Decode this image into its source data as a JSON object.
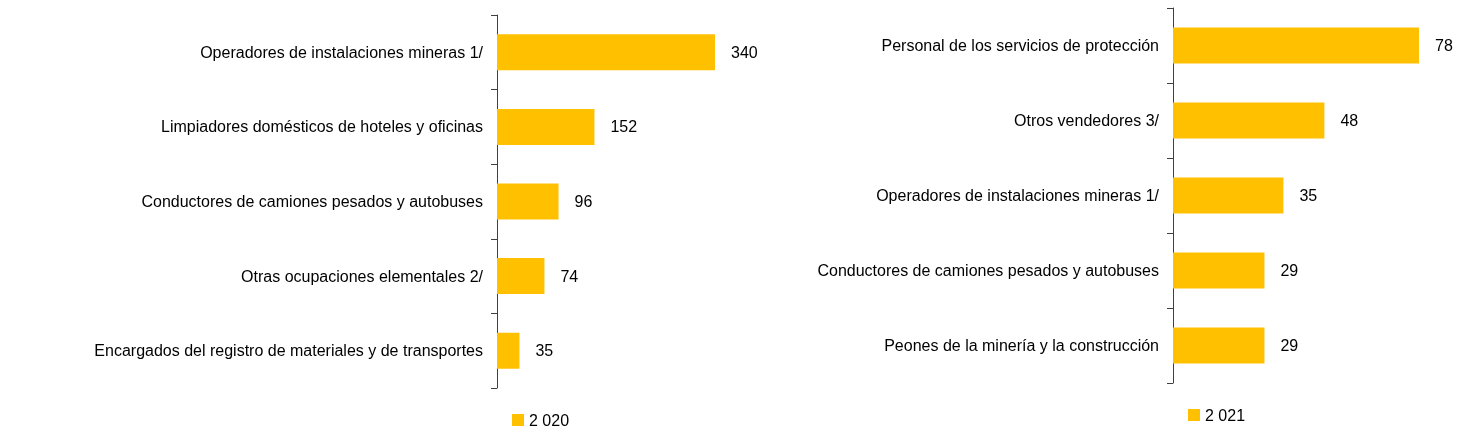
{
  "chart_data": [
    {
      "type": "bar",
      "orientation": "horizontal",
      "categories": [
        "Operadores de instalaciones mineras 1/",
        "Limpiadores domésticos de hoteles y oficinas",
        "Conductores de camiones pesados y autobuses",
        "Otras ocupaciones elementales 2/",
        "Encargados del registro de materiales y de transportes"
      ],
      "series": [
        {
          "name": "2 020",
          "color": "#ffc000",
          "values": [
            340,
            152,
            96,
            74,
            35
          ]
        }
      ],
      "data_labels": true,
      "legend": "bottom"
    },
    {
      "type": "bar",
      "orientation": "horizontal",
      "categories": [
        "Personal de los servicios de protección",
        "Otros vendedores 3/",
        "Operadores de instalaciones mineras 1/",
        "Conductores de camiones pesados y autobuses",
        "Peones de la minería y la construcción"
      ],
      "series": [
        {
          "name": "2 021",
          "color": "#ffc000",
          "values": [
            78,
            48,
            35,
            29,
            29
          ]
        }
      ],
      "data_labels": true,
      "legend": "bottom"
    }
  ]
}
